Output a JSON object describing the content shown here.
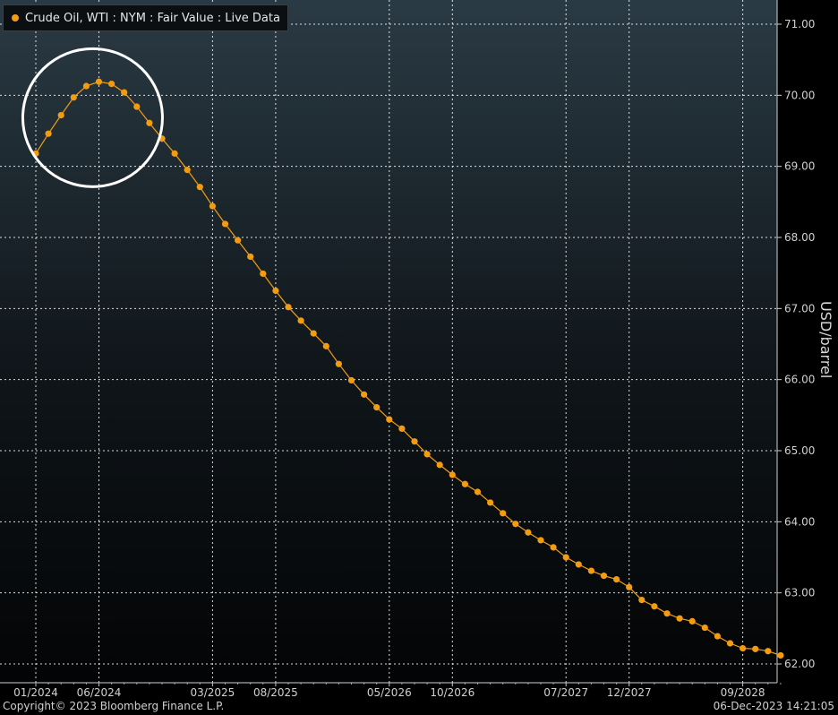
{
  "legend": {
    "label": "Crude Oil, WTI : NYM : Fair Value : Live Data",
    "icon": "dot-marker-icon"
  },
  "footer": {
    "copyright": "Copyright© 2023 Bloomberg Finance L.P.",
    "timestamp": "06-Dec-2023 14:21:05"
  },
  "colors": {
    "series": "#f39c12",
    "grid": "#ffffff",
    "highlight": "#ffffff",
    "text": "#d0d0d0"
  },
  "chart_data": {
    "type": "line",
    "title": "",
    "xlabel": "",
    "ylabel": "USD/barrel",
    "ylim": [
      62.0,
      71.0
    ],
    "yticks": [
      "62.00",
      "63.00",
      "64.00",
      "65.00",
      "66.00",
      "67.00",
      "68.00",
      "69.00",
      "70.00",
      "71.00"
    ],
    "xtick_labels": [
      "01/2024",
      "06/2024",
      "03/2025",
      "08/2025",
      "05/2026",
      "10/2026",
      "07/2027",
      "12/2027",
      "09/2028"
    ],
    "xtick_index": [
      0,
      5,
      14,
      19,
      28,
      33,
      42,
      47,
      56
    ],
    "grid": true,
    "legend_position": "top-left",
    "annotation": "circle highlighting the peak around 03/2024–07/2024",
    "annotation_range": [
      0,
      9
    ],
    "series": [
      {
        "name": "Crude Oil, WTI : NYM : Fair Value : Live Data",
        "x": [
          "01/2024",
          "02/2024",
          "03/2024",
          "04/2024",
          "05/2024",
          "06/2024",
          "07/2024",
          "08/2024",
          "09/2024",
          "10/2024",
          "11/2024",
          "12/2024",
          "01/2025",
          "02/2025",
          "03/2025",
          "04/2025",
          "05/2025",
          "06/2025",
          "07/2025",
          "08/2025",
          "09/2025",
          "10/2025",
          "11/2025",
          "12/2025",
          "01/2026",
          "02/2026",
          "03/2026",
          "04/2026",
          "05/2026",
          "06/2026",
          "07/2026",
          "08/2026",
          "09/2026",
          "10/2026",
          "11/2026",
          "12/2026",
          "01/2027",
          "02/2027",
          "03/2027",
          "04/2027",
          "05/2027",
          "06/2027",
          "07/2027",
          "08/2027",
          "09/2027",
          "10/2027",
          "11/2027",
          "12/2027",
          "01/2028",
          "02/2028",
          "03/2028",
          "04/2028",
          "05/2028",
          "06/2028",
          "07/2028",
          "08/2028",
          "09/2028",
          "10/2028",
          "11/2028",
          "12/2028"
        ],
        "values": [
          69.18,
          69.46,
          69.72,
          69.97,
          70.13,
          70.19,
          70.16,
          70.04,
          69.84,
          69.61,
          69.39,
          69.18,
          68.95,
          68.71,
          68.44,
          68.19,
          67.96,
          67.73,
          67.49,
          67.25,
          67.02,
          66.83,
          66.65,
          66.47,
          66.22,
          65.99,
          65.79,
          65.61,
          65.44,
          65.31,
          65.13,
          64.95,
          64.8,
          64.66,
          64.53,
          64.42,
          64.27,
          64.12,
          63.97,
          63.85,
          63.74,
          63.64,
          63.5,
          63.4,
          63.31,
          63.24,
          63.19,
          63.08,
          62.9,
          62.81,
          62.71,
          62.64,
          62.6,
          62.51,
          62.39,
          62.29,
          62.22,
          62.21,
          62.18,
          62.12
        ]
      }
    ]
  }
}
